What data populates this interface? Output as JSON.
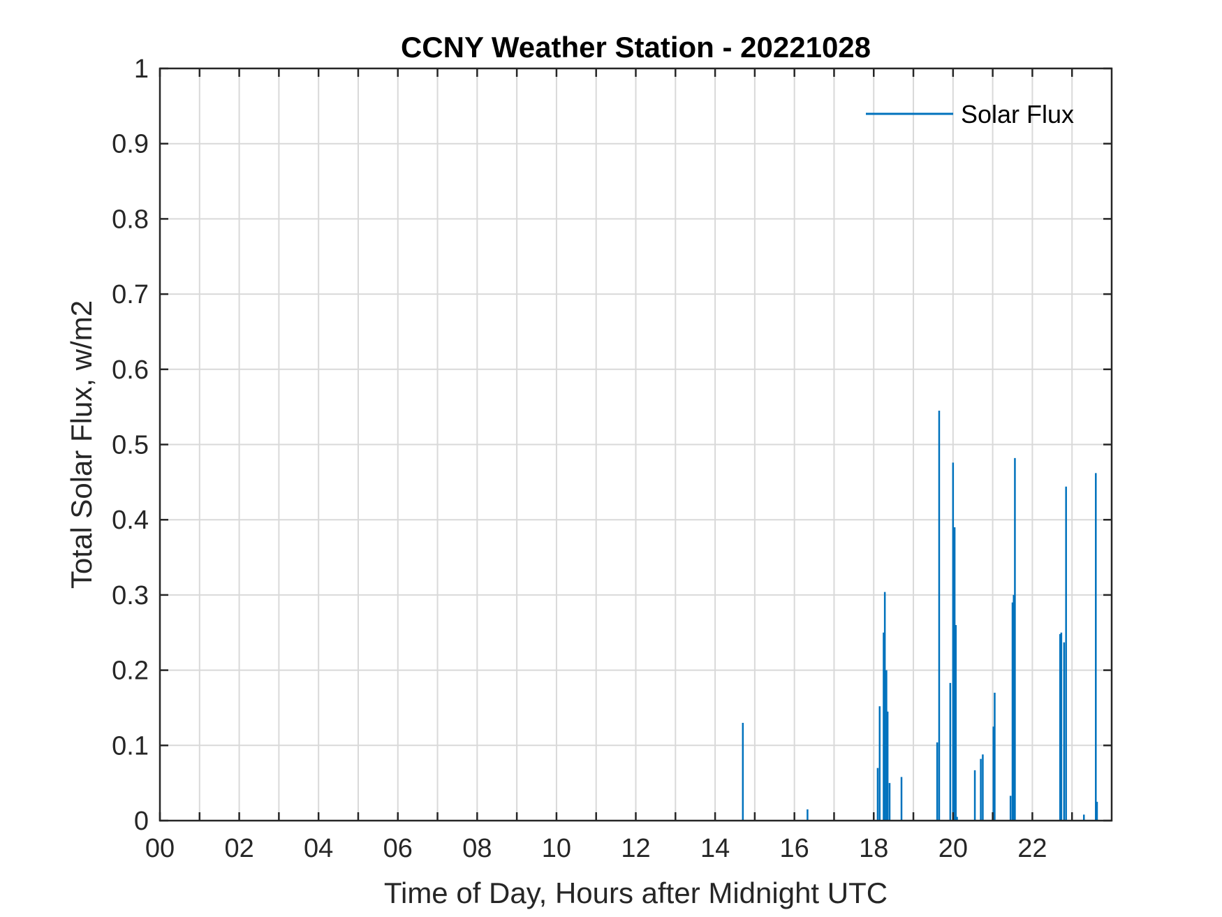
{
  "chart_data": {
    "type": "line",
    "title": "CCNY Weather Station - 20221028",
    "xlabel": "Time of Day, Hours after Midnight UTC",
    "ylabel": "Total Solar Flux, w/m2",
    "xlim": [
      0,
      24
    ],
    "ylim": [
      0,
      1
    ],
    "xticks": [
      0,
      2,
      4,
      6,
      8,
      10,
      12,
      14,
      16,
      18,
      20,
      22
    ],
    "xtick_labels": [
      "00",
      "02",
      "04",
      "06",
      "08",
      "10",
      "12",
      "14",
      "16",
      "18",
      "20",
      "22"
    ],
    "yticks": [
      0,
      0.1,
      0.2,
      0.3,
      0.4,
      0.5,
      0.6,
      0.7,
      0.8,
      0.9,
      1
    ],
    "ytick_labels": [
      "0",
      "0.1",
      "0.2",
      "0.3",
      "0.4",
      "0.5",
      "0.6",
      "0.7",
      "0.8",
      "0.9",
      "1"
    ],
    "grid": true,
    "legend": {
      "location": "top-right",
      "entries": [
        "Solar Flux"
      ]
    },
    "series": [
      {
        "name": "Solar Flux",
        "color": "#0072BD",
        "points": [
          [
            14.7,
            0.13
          ],
          [
            16.33,
            0.015
          ],
          [
            18.1,
            0.07
          ],
          [
            18.15,
            0.152
          ],
          [
            18.25,
            0.25
          ],
          [
            18.28,
            0.304
          ],
          [
            18.32,
            0.2
          ],
          [
            18.35,
            0.145
          ],
          [
            18.4,
            0.05
          ],
          [
            18.7,
            0.058
          ],
          [
            19.6,
            0.104
          ],
          [
            19.65,
            0.545
          ],
          [
            19.93,
            0.183
          ],
          [
            20.0,
            0.476
          ],
          [
            20.04,
            0.39
          ],
          [
            20.07,
            0.26
          ],
          [
            20.1,
            0.005
          ],
          [
            20.55,
            0.067
          ],
          [
            20.7,
            0.082
          ],
          [
            20.75,
            0.088
          ],
          [
            21.02,
            0.125
          ],
          [
            21.05,
            0.17
          ],
          [
            21.45,
            0.033
          ],
          [
            21.5,
            0.29
          ],
          [
            21.53,
            0.3
          ],
          [
            21.56,
            0.482
          ],
          [
            22.7,
            0.248
          ],
          [
            22.73,
            0.25
          ],
          [
            22.8,
            0.237
          ],
          [
            22.85,
            0.444
          ],
          [
            23.3,
            0.008
          ],
          [
            23.6,
            0.462
          ],
          [
            23.63,
            0.025
          ]
        ]
      }
    ]
  }
}
